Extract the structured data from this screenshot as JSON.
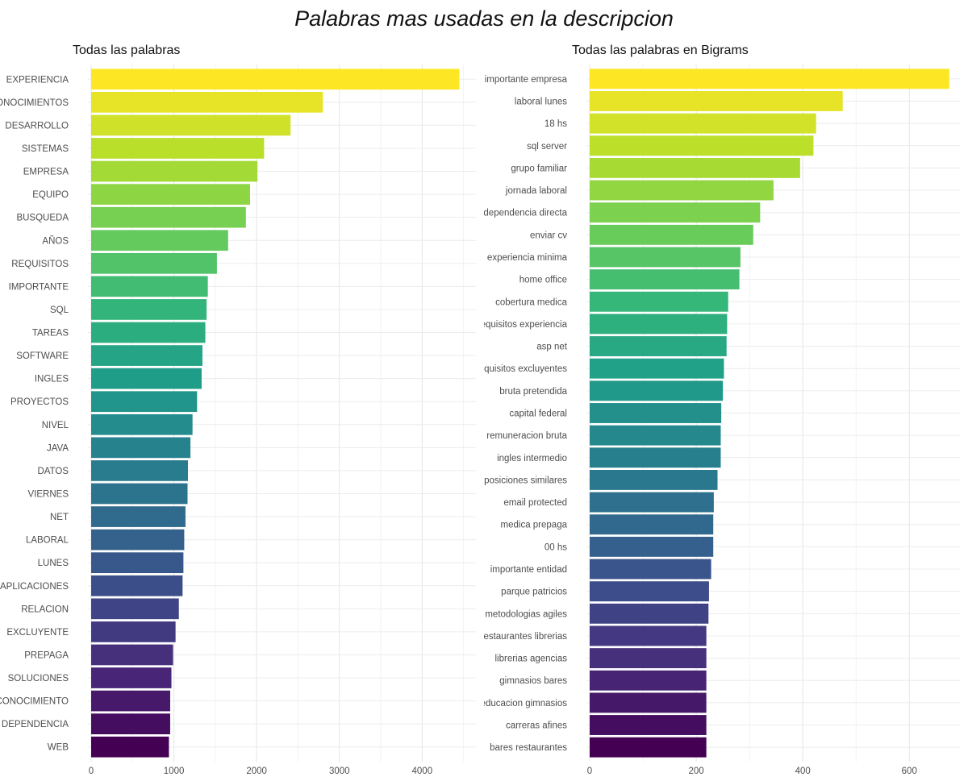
{
  "page": {
    "title": "Palabras mas usadas en la descripcion"
  },
  "chart_data": [
    {
      "type": "bar",
      "orientation": "horizontal",
      "title": "Todas las palabras",
      "xlabel": "",
      "ylabel": "",
      "xlim": [
        0,
        4650
      ],
      "xticks": [
        0,
        1000,
        2000,
        3000,
        4000
      ],
      "grid": true,
      "legend": "none",
      "color_scale": "viridis",
      "categories": [
        "EXPERIENCIA",
        "CONOCIMIENTOS",
        "DESARROLLO",
        "SISTEMAS",
        "EMPRESA",
        "EQUIPO",
        "BUSQUEDA",
        "AÑOS",
        "REQUISITOS",
        "IMPORTANTE",
        "SQL",
        "TAREAS",
        "SOFTWARE",
        "INGLES",
        "PROYECTOS",
        "NIVEL",
        "JAVA",
        "DATOS",
        "VIERNES",
        "NET",
        "LABORAL",
        "LUNES",
        "APLICACIONES",
        "RELACION",
        "EXCLUYENTE",
        "PREPAGA",
        "SOLUCIONES",
        "CONOCIMIENTO",
        "DEPENDENCIA",
        "WEB"
      ],
      "values": [
        4450,
        2800,
        2410,
        2090,
        2010,
        1920,
        1870,
        1655,
        1520,
        1410,
        1395,
        1380,
        1345,
        1335,
        1280,
        1225,
        1200,
        1170,
        1165,
        1140,
        1125,
        1115,
        1105,
        1060,
        1020,
        990,
        970,
        955,
        955,
        940
      ]
    },
    {
      "type": "bar",
      "orientation": "horizontal",
      "title": "Todas las palabras en Bigrams",
      "xlabel": "",
      "ylabel": "",
      "xlim": [
        0,
        695
      ],
      "xticks": [
        0,
        200,
        400,
        600
      ],
      "grid": true,
      "legend": "none",
      "color_scale": "viridis",
      "categories": [
        "importante empresa",
        "laboral lunes",
        "18 hs",
        "sql server",
        "grupo familiar",
        "jornada laboral",
        "dependencia directa",
        "enviar cv",
        "experiencia minima",
        "home office",
        "cobertura medica",
        "requisitos experiencia",
        "asp net",
        "requisitos excluyentes",
        "bruta pretendida",
        "capital federal",
        "remuneracion bruta",
        "ingles intermedio",
        "posiciones similares",
        "email protected",
        "medica prepaga",
        "00 hs",
        "importante entidad",
        "parque patricios",
        "metodologias agiles",
        "restaurantes librerias",
        "librerias agencias",
        "gimnasios bares",
        "educacion gimnasios",
        "carreras afines",
        "bares restaurantes"
      ],
      "values": [
        675,
        475,
        425,
        420,
        395,
        345,
        320,
        307,
        283,
        281,
        260,
        258,
        257,
        252,
        250,
        247,
        246,
        246,
        240,
        233,
        232,
        232,
        228,
        224,
        223,
        219,
        219,
        219,
        219,
        219,
        219
      ]
    }
  ]
}
